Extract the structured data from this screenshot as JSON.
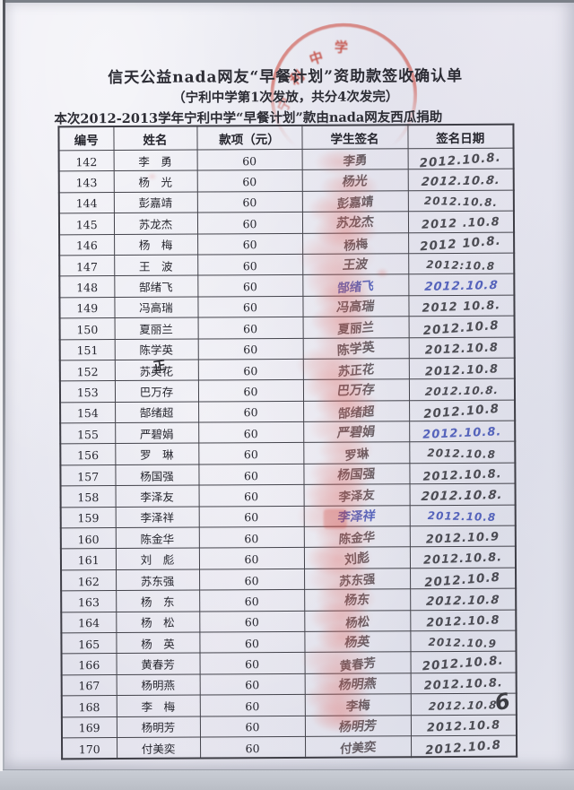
{
  "page": {
    "title": "信天公益nada网友“早餐计划”资助款签收确认单",
    "subtitle": "（宁利中学第1次发放，共分4次发完）",
    "note": "本次2012-2013学年宁利中学“早餐计划”款由nada网友西瓜捐助",
    "page_number": "6"
  },
  "seal": {
    "text": "宁利中学",
    "star": "★",
    "color": "#c84a3f"
  },
  "table": {
    "headers": [
      "编号",
      "姓名",
      "款项（元）",
      "学生签名",
      "签名日期"
    ],
    "rows": [
      {
        "no": "142",
        "name": "李　勇",
        "amount": "60",
        "signature": "李勇",
        "date": "2012.10.8.",
        "sig_ink": "dark",
        "date_ink": "dark"
      },
      {
        "no": "143",
        "name": "杨　光",
        "amount": "60",
        "signature": "杨光",
        "date": "2012.10.8.",
        "sig_ink": "dark",
        "date_ink": "dark"
      },
      {
        "no": "144",
        "name": "彭嘉靖",
        "amount": "60",
        "signature": "彭嘉靖",
        "date": "2012.10.8.",
        "sig_ink": "dark",
        "date_ink": "dark"
      },
      {
        "no": "145",
        "name": "苏龙杰",
        "amount": "60",
        "signature": "苏龙杰",
        "date": "2012 .10.8",
        "sig_ink": "dark",
        "date_ink": "dark"
      },
      {
        "no": "146",
        "name": "杨　梅",
        "amount": "60",
        "signature": "杨梅",
        "date": "2012 10.8.",
        "sig_ink": "dark",
        "date_ink": "dark"
      },
      {
        "no": "147",
        "name": "王　波",
        "amount": "60",
        "signature": "王波",
        "date": "2012:10.8",
        "sig_ink": "dark",
        "date_ink": "dark"
      },
      {
        "no": "148",
        "name": "郜绪飞",
        "amount": "60",
        "signature": "郜绪飞",
        "date": "2012.10.8",
        "sig_ink": "blue",
        "date_ink": "blue"
      },
      {
        "no": "149",
        "name": "冯高瑞",
        "amount": "60",
        "signature": "冯高瑞",
        "date": "2012 10.8.",
        "sig_ink": "dark",
        "date_ink": "dark"
      },
      {
        "no": "150",
        "name": "夏丽兰",
        "amount": "60",
        "signature": "夏丽兰",
        "date": "2012.10.8",
        "sig_ink": "dark",
        "date_ink": "dark"
      },
      {
        "no": "151",
        "name": "陈学英",
        "amount": "60",
        "signature": "陈学英",
        "date": "2012.10.8",
        "sig_ink": "dark",
        "date_ink": "dark"
      },
      {
        "no": "152",
        "name": "苏英花",
        "amount": "60",
        "signature": "苏正花",
        "date": "2012.10.8",
        "sig_ink": "dark",
        "date_ink": "dark",
        "correction": "正"
      },
      {
        "no": "153",
        "name": "巴万存",
        "amount": "60",
        "signature": "巴万存",
        "date": "2012.10.8.",
        "sig_ink": "dark",
        "date_ink": "dark"
      },
      {
        "no": "154",
        "name": "郜绪超",
        "amount": "60",
        "signature": "郜绪超",
        "date": "2012.10.8",
        "sig_ink": "dark",
        "date_ink": "dark"
      },
      {
        "no": "155",
        "name": "严碧娟",
        "amount": "60",
        "signature": "严碧娟",
        "date": "2012.10.8.",
        "sig_ink": "dark",
        "date_ink": "blue"
      },
      {
        "no": "156",
        "name": "罗　琳",
        "amount": "60",
        "signature": "罗琳",
        "date": "2012.10.8",
        "sig_ink": "dark",
        "date_ink": "dark"
      },
      {
        "no": "157",
        "name": "杨国强",
        "amount": "60",
        "signature": "杨国强",
        "date": "2012.10.8.",
        "sig_ink": "dark",
        "date_ink": "dark"
      },
      {
        "no": "158",
        "name": "李泽友",
        "amount": "60",
        "signature": "李泽友",
        "date": "2012.10.8.",
        "sig_ink": "dark",
        "date_ink": "dark"
      },
      {
        "no": "159",
        "name": "李泽祥",
        "amount": "60",
        "signature": "李泽祥",
        "date": "2012.10.8",
        "sig_ink": "blue",
        "date_ink": "blue"
      },
      {
        "no": "160",
        "name": "陈金华",
        "amount": "60",
        "signature": "陈金华",
        "date": "2012.10.9",
        "sig_ink": "dark",
        "date_ink": "dark"
      },
      {
        "no": "161",
        "name": "刘　彪",
        "amount": "60",
        "signature": "刘彪",
        "date": "2012.10.8.",
        "sig_ink": "dark",
        "date_ink": "dark"
      },
      {
        "no": "162",
        "name": "苏东强",
        "amount": "60",
        "signature": "苏东强",
        "date": "2012.10.8",
        "sig_ink": "dark",
        "date_ink": "dark"
      },
      {
        "no": "163",
        "name": "杨　东",
        "amount": "60",
        "signature": "杨东",
        "date": "2012.10.8",
        "sig_ink": "dark",
        "date_ink": "dark"
      },
      {
        "no": "164",
        "name": "杨　松",
        "amount": "60",
        "signature": "杨松",
        "date": "2012.10.8",
        "sig_ink": "dark",
        "date_ink": "dark"
      },
      {
        "no": "165",
        "name": "杨　英",
        "amount": "60",
        "signature": "杨英",
        "date": "2012.10.9",
        "sig_ink": "dark",
        "date_ink": "dark"
      },
      {
        "no": "166",
        "name": "黄春芳",
        "amount": "60",
        "signature": "黄春芳",
        "date": "2012.10.8.",
        "sig_ink": "dark",
        "date_ink": "dark"
      },
      {
        "no": "167",
        "name": "杨明燕",
        "amount": "60",
        "signature": "杨明燕",
        "date": "2012.10.8.",
        "sig_ink": "dark",
        "date_ink": "dark"
      },
      {
        "no": "168",
        "name": "李　梅",
        "amount": "60",
        "signature": "李梅",
        "date": "2012.10.8",
        "sig_ink": "dark",
        "date_ink": "dark"
      },
      {
        "no": "169",
        "name": "杨明芳",
        "amount": "60",
        "signature": "杨明芳",
        "date": "2012.10.8",
        "sig_ink": "dark",
        "date_ink": "dark"
      },
      {
        "no": "170",
        "name": "付美奕",
        "amount": "60",
        "signature": "付美奕",
        "date": "2012.10.8",
        "sig_ink": "dark",
        "date_ink": "dark"
      }
    ]
  }
}
